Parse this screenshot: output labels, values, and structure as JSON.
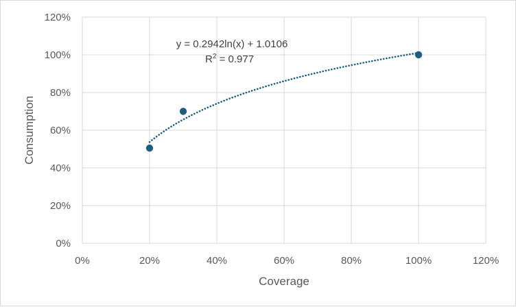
{
  "chart_data": {
    "type": "scatter",
    "title": "",
    "xlabel": "Coverage",
    "ylabel": "Consumption",
    "xlim": [
      0,
      1.2
    ],
    "ylim": [
      0,
      1.2
    ],
    "x_ticks": [
      0,
      0.2,
      0.4,
      0.6,
      0.8,
      1.0,
      1.2
    ],
    "y_ticks": [
      0,
      0.2,
      0.4,
      0.6,
      0.8,
      1.0,
      1.2
    ],
    "x_tick_labels": [
      "0%",
      "20%",
      "40%",
      "60%",
      "80%",
      "100%",
      "120%"
    ],
    "y_tick_labels": [
      "0%",
      "20%",
      "40%",
      "60%",
      "80%",
      "100%",
      "120%"
    ],
    "grid": true,
    "legend": "none",
    "series": [
      {
        "x": [
          0.2,
          0.3,
          1.0
        ],
        "y": [
          0.505,
          0.7,
          1.0
        ]
      }
    ],
    "trendline": {
      "type": "logarithmic",
      "a": 0.2942,
      "b": 1.0106,
      "x_range": [
        0.2,
        1.0
      ],
      "equation": "y = 0.2942ln(x) + 1.0106",
      "r2_prefix": "R",
      "r2_sup": "2",
      "r2_suffix": " = 0.977"
    },
    "colors": {
      "marker": "#1b5e82",
      "trendline": "#1b5e82",
      "grid": "#d9d9d9",
      "text": "#595959"
    }
  }
}
